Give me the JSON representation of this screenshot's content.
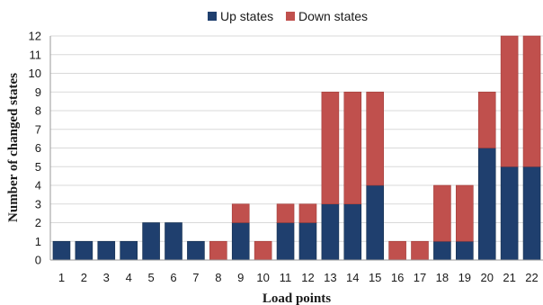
{
  "chart_data": {
    "type": "bar",
    "stacked": true,
    "categories": [
      "1",
      "2",
      "3",
      "4",
      "5",
      "6",
      "7",
      "8",
      "9",
      "10",
      "11",
      "12",
      "13",
      "14",
      "15",
      "16",
      "17",
      "18",
      "19",
      "20",
      "21",
      "22"
    ],
    "series": [
      {
        "name": "Up states",
        "color": "#1f3f6e",
        "values": [
          1,
          1,
          1,
          1,
          2,
          2,
          1,
          0,
          2,
          0,
          2,
          2,
          3,
          3,
          4,
          0,
          0,
          1,
          1,
          6,
          5,
          5
        ]
      },
      {
        "name": "Down states",
        "color": "#c0504d",
        "values": [
          0,
          0,
          0,
          0,
          0,
          0,
          0,
          1,
          1,
          1,
          1,
          1,
          6,
          6,
          5,
          1,
          1,
          3,
          3,
          3,
          7,
          7
        ]
      }
    ],
    "xlabel": "Load points",
    "ylabel": "Number of changed states",
    "ylim": [
      0,
      12
    ],
    "yticks": [
      0,
      1,
      2,
      3,
      4,
      5,
      6,
      7,
      8,
      9,
      10,
      11,
      12
    ],
    "grid": true,
    "legend": "top-center"
  }
}
